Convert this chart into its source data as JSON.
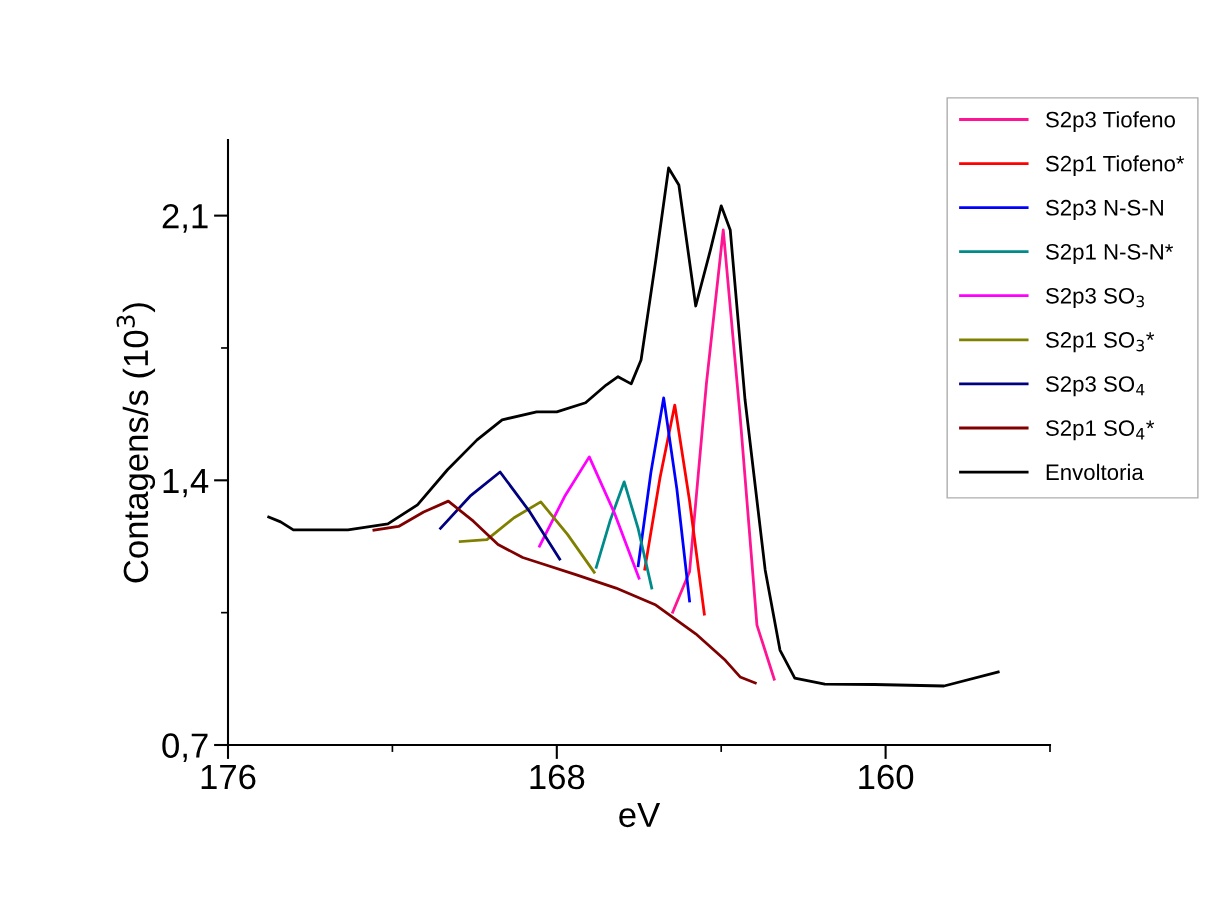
{
  "chart_data": {
    "type": "line",
    "xlabel": "eV",
    "ylabel": "Contagens/s (10$^{3}$)",
    "xlim": [
      176,
      156
    ],
    "ylim": [
      0.7,
      2.3
    ],
    "xticks": [
      176,
      {
        "value": 172,
        "label": null
      },
      168,
      {
        "value": 164,
        "label": null
      },
      160,
      {
        "value": 156,
        "label": null
      }
    ],
    "yticks": [
      {
        "value": 0.7,
        "label": "0,7"
      },
      {
        "value": 1.05,
        "label": null
      },
      {
        "value": 1.4,
        "label": "1,4"
      },
      {
        "value": 1.75,
        "label": null
      },
      {
        "value": 2.1,
        "label": "2,1"
      }
    ],
    "grid": false,
    "legend": "top right",
    "marker": "none",
    "line_style": "solid",
    "series": [
      {
        "name": "S2p3 Tiofeno",
        "color": "#ff1493",
        "x": [
          165.18,
          164.77,
          164.36,
          163.95,
          163.54,
          163.13,
          162.71
        ],
        "values": [
          1.051,
          1.158,
          1.656,
          2.062,
          1.57,
          1.017,
          0.874
        ]
      },
      {
        "name": "S2p1 Tiofeno*",
        "color": "#ff0000",
        "x": [
          165.86,
          165.49,
          165.13,
          164.77,
          164.41
        ],
        "values": [
          1.165,
          1.406,
          1.599,
          1.346,
          1.046
        ]
      },
      {
        "name": "S2p3 N-S-N",
        "color": "#0000ff",
        "x": [
          166.02,
          165.71,
          165.4,
          165.08,
          164.77
        ],
        "values": [
          1.174,
          1.421,
          1.618,
          1.378,
          1.081
        ]
      },
      {
        "name": "S2p1 N-S-N*",
        "color": "#008b8b",
        "x": [
          167.04,
          166.7,
          166.36,
          166.02,
          165.69
        ],
        "values": [
          1.17,
          1.294,
          1.396,
          1.272,
          1.115
        ]
      },
      {
        "name": "S2p3 SO$_{3}$",
        "color": "#ff00ff",
        "x": [
          168.42,
          167.81,
          167.21,
          166.6,
          166.0
        ],
        "values": [
          1.226,
          1.357,
          1.462,
          1.314,
          1.141
        ]
      },
      {
        "name": "S2p1 SO$_{3}$*",
        "color": "#808000",
        "x": [
          170.35,
          169.7,
          169.04,
          168.39,
          167.74,
          167.09
        ],
        "values": [
          1.238,
          1.243,
          1.301,
          1.343,
          1.257,
          1.157
        ]
      },
      {
        "name": "S2p3 SO$_{4}$",
        "color": "#000080",
        "x": [
          170.83,
          170.11,
          169.38,
          168.66,
          167.93
        ],
        "values": [
          1.273,
          1.358,
          1.422,
          1.317,
          1.192
        ]
      },
      {
        "name": "S2p1 SO$_{4}$*",
        "color": "#800000",
        "x": [
          172.45,
          171.85,
          171.24,
          170.64,
          170.03,
          169.43,
          168.83,
          168.49,
          167.52,
          166.56,
          165.59,
          164.62,
          163.9,
          163.54,
          163.17
        ],
        "values": [
          1.268,
          1.278,
          1.316,
          1.345,
          1.292,
          1.23,
          1.196,
          1.184,
          1.15,
          1.115,
          1.07,
          0.994,
          0.924,
          0.88,
          0.864
        ]
      },
      {
        "name": "Envoltoria",
        "color": "#000000",
        "x": [
          175.01,
          174.72,
          174.41,
          173.08,
          172.11,
          171.39,
          170.66,
          169.94,
          169.33,
          168.49,
          168.0,
          167.3,
          166.8,
          166.51,
          166.19,
          165.95,
          165.59,
          165.28,
          165.03,
          164.62,
          164.26,
          164.0,
          163.78,
          163.42,
          162.93,
          162.57,
          162.21,
          161.48,
          160.28,
          158.58,
          157.26
        ],
        "values": [
          1.303,
          1.29,
          1.269,
          1.269,
          1.285,
          1.335,
          1.428,
          1.507,
          1.56,
          1.581,
          1.581,
          1.605,
          1.652,
          1.674,
          1.655,
          1.718,
          1.983,
          2.226,
          2.181,
          1.861,
          2.01,
          2.126,
          2.062,
          1.613,
          1.163,
          0.951,
          0.877,
          0.861,
          0.86,
          0.856,
          0.893
        ]
      }
    ]
  }
}
